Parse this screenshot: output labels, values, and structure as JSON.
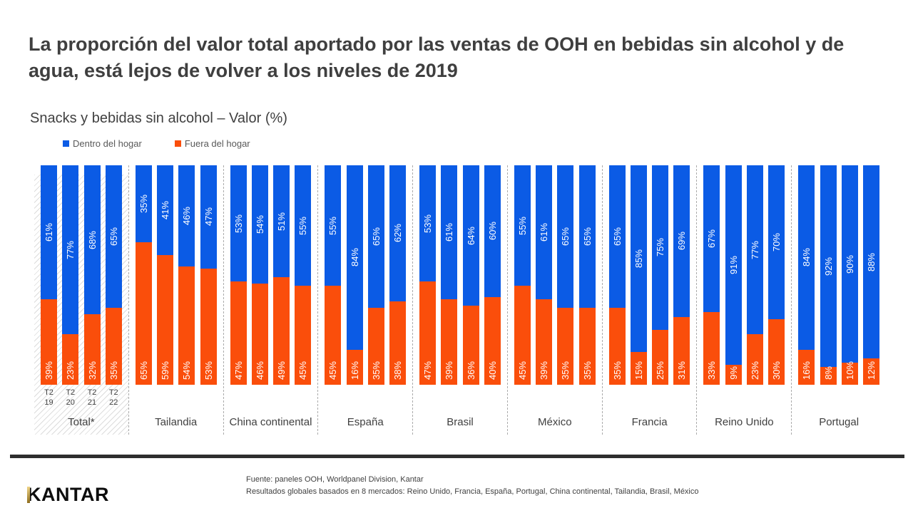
{
  "title": "La proporción del valor total aportado por las ventas de OOH en bebidas sin alcohol y de agua, está lejos de volver a los niveles de 2019",
  "subtitle": "Snacks y bebidas sin alcohol – Valor (%)",
  "colors": {
    "dentro": "#0b5be5",
    "fuera": "#fa4e0b",
    "kantar_gold_light": "#f0d587",
    "kantar_gold_dark": "#8f6e1e"
  },
  "legend": [
    {
      "label": "Dentro del hogar",
      "color_key": "dentro"
    },
    {
      "label": "Fuera del hogar",
      "color_key": "fuera"
    }
  ],
  "chart_data": {
    "type": "bar",
    "stacked": true,
    "orientation": "vertical",
    "value_unit": "%",
    "ylim": [
      0,
      100
    ],
    "grid": false,
    "legend_position": "top-left",
    "series_names": [
      "Dentro del hogar",
      "Fuera del hogar"
    ],
    "quarters": [
      "T2 19",
      "T2 20",
      "T2 21",
      "T2 22"
    ],
    "groups": [
      {
        "label": "Total*",
        "highlighted": true,
        "show_quarter_labels": true,
        "dentro": [
          61,
          77,
          68,
          65
        ],
        "fuera": [
          39,
          23,
          32,
          35
        ]
      },
      {
        "label": "Tailandia",
        "highlighted": false,
        "show_quarter_labels": false,
        "dentro": [
          35,
          41,
          46,
          47
        ],
        "fuera": [
          65,
          59,
          54,
          53
        ]
      },
      {
        "label": "China continental",
        "highlighted": false,
        "show_quarter_labels": false,
        "dentro": [
          53,
          54,
          51,
          55
        ],
        "fuera": [
          47,
          46,
          49,
          45
        ]
      },
      {
        "label": "España",
        "highlighted": false,
        "show_quarter_labels": false,
        "dentro": [
          55,
          84,
          65,
          62
        ],
        "fuera": [
          45,
          16,
          35,
          38
        ]
      },
      {
        "label": "Brasil",
        "highlighted": false,
        "show_quarter_labels": false,
        "dentro": [
          53,
          61,
          64,
          60
        ],
        "fuera": [
          47,
          39,
          36,
          40
        ]
      },
      {
        "label": "México",
        "highlighted": false,
        "show_quarter_labels": false,
        "dentro": [
          55,
          61,
          65,
          65
        ],
        "fuera": [
          45,
          39,
          35,
          35
        ]
      },
      {
        "label": "Francia",
        "highlighted": false,
        "show_quarter_labels": false,
        "dentro": [
          65,
          85,
          75,
          69
        ],
        "fuera": [
          35,
          15,
          25,
          31
        ]
      },
      {
        "label": "Reino Unido",
        "highlighted": false,
        "show_quarter_labels": false,
        "dentro": [
          67,
          91,
          77,
          70
        ],
        "fuera": [
          33,
          9,
          23,
          30
        ]
      },
      {
        "label": "Portugal",
        "highlighted": false,
        "show_quarter_labels": false,
        "dentro": [
          84,
          92,
          90,
          88
        ],
        "fuera": [
          16,
          8,
          10,
          12
        ]
      }
    ]
  },
  "footer": {
    "logo": "KANTAR",
    "source_line1": "Fuente: paneles OOH, Worldpanel Division, Kantar",
    "source_line2": "Resultados globales basados en 8 mercados: Reino Unido, Francia, España, Portugal, China continental, Tailandia, Brasil, México"
  }
}
